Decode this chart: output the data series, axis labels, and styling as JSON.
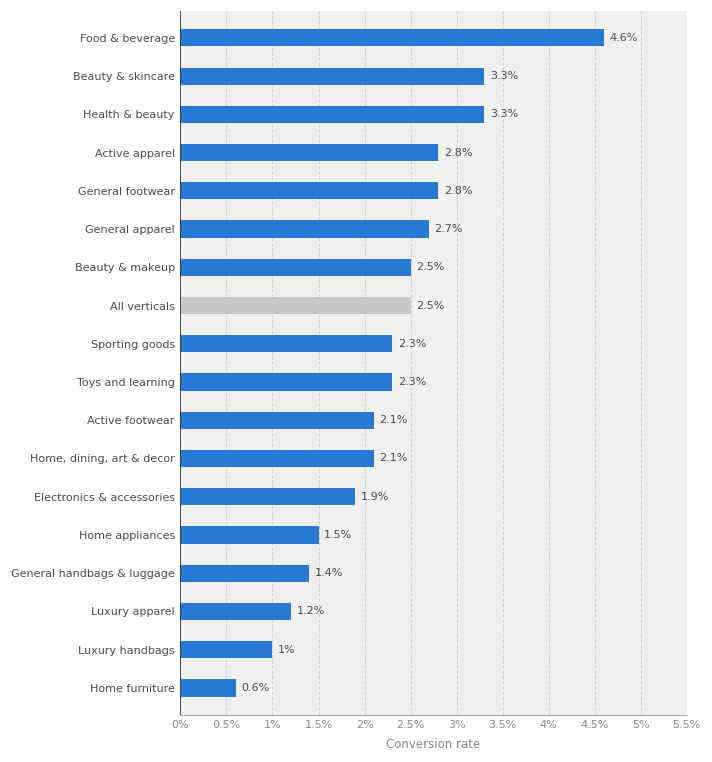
{
  "categories": [
    "Food & beverage",
    "Beauty & skincare",
    "Health & beauty",
    "Active apparel",
    "General footwear",
    "General apparel",
    "Beauty & makeup",
    "All verticals",
    "Sporting goods",
    "Toys and learning",
    "Active footwear",
    "Home, dining, art & decor",
    "Electronics & accessories",
    "Home appliances",
    "General handbags & luggage",
    "Luxury apparel",
    "Luxury handbags",
    "Home furniture"
  ],
  "values": [
    4.6,
    3.3,
    3.3,
    2.8,
    2.8,
    2.7,
    2.5,
    2.5,
    2.3,
    2.3,
    2.1,
    2.1,
    1.9,
    1.5,
    1.4,
    1.2,
    1.0,
    0.6
  ],
  "labels": [
    "4.6%",
    "3.3%",
    "3.3%",
    "2.8%",
    "2.8%",
    "2.7%",
    "2.5%",
    "2.5%",
    "2.3%",
    "2.3%",
    "2.1%",
    "2.1%",
    "1.9%",
    "1.5%",
    "1.4%",
    "1.2%",
    "1%",
    "0.6%"
  ],
  "bar_colors": [
    "#2779d4",
    "#2779d4",
    "#2779d4",
    "#2779d4",
    "#2779d4",
    "#2779d4",
    "#2779d4",
    "#c8c8c8",
    "#2779d4",
    "#2779d4",
    "#2779d4",
    "#2779d4",
    "#2779d4",
    "#2779d4",
    "#2779d4",
    "#2779d4",
    "#2779d4",
    "#2779d4"
  ],
  "xlabel": "Conversion rate",
  "xlim": [
    0,
    5.5
  ],
  "xtick_values": [
    0,
    0.5,
    1.0,
    1.5,
    2.0,
    2.5,
    3.0,
    3.5,
    4.0,
    4.5,
    5.0,
    5.5
  ],
  "xtick_labels": [
    "0%",
    "0.5%",
    "1%",
    "1.5%",
    "2%",
    "2.5%",
    "3%",
    "3.5%",
    "4%",
    "4.5%",
    "5%",
    "5.5%"
  ],
  "background_color": "#ffffff",
  "plot_bg_color": "#f0f0f0",
  "grid_color": "#d0d0d0",
  "label_fontsize": 8.0,
  "tick_fontsize": 8.0,
  "bar_label_fontsize": 8.0,
  "xlabel_fontsize": 8.5,
  "label_color": "#4a4a4a",
  "tick_color": "#888888",
  "bar_height": 0.45
}
